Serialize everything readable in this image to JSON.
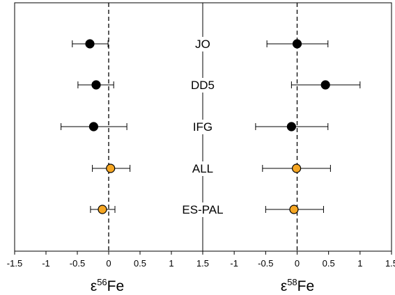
{
  "chart_data": [
    {
      "type": "scatter",
      "xlabel": "ε56Fe",
      "xlabel_prefix": "ε",
      "xlabel_sup": "56",
      "xlabel_suffix": "Fe",
      "xlim": [
        -1.5,
        1.5
      ],
      "xticks": [
        "-1.5",
        "-1",
        "-0.5",
        "0",
        "0.5",
        "1",
        "1.5"
      ],
      "reference_line_x": 0,
      "points": [
        {
          "category": "JO",
          "x": -0.3,
          "err_low": -0.58,
          "err_high": -0.01,
          "color": "#000000"
        },
        {
          "category": "DD5",
          "x": -0.2,
          "err_low": -0.49,
          "err_high": 0.08,
          "color": "#000000"
        },
        {
          "category": "IFG",
          "x": -0.24,
          "err_low": -0.76,
          "err_high": 0.29,
          "color": "#000000"
        },
        {
          "category": "ALL",
          "x": 0.03,
          "err_low": -0.26,
          "err_high": 0.34,
          "color": "#f5a623"
        },
        {
          "category": "ES-PAL",
          "x": -0.1,
          "err_low": -0.29,
          "err_high": 0.1,
          "color": "#f5a623"
        }
      ]
    },
    {
      "type": "scatter",
      "xlabel": "ε58Fe",
      "xlabel_prefix": "ε",
      "xlabel_sup": "58",
      "xlabel_suffix": "Fe",
      "xlim": [
        -1.5,
        1.5
      ],
      "xticks": [
        "-1",
        "-0.5",
        "0",
        "0.5",
        "1",
        "1.5"
      ],
      "reference_line_x": 0,
      "points": [
        {
          "category": "JO",
          "x": 0.0,
          "err_low": -0.48,
          "err_high": 0.49,
          "color": "#000000"
        },
        {
          "category": "DD5",
          "x": 0.45,
          "err_low": -0.09,
          "err_high": 1.0,
          "color": "#000000"
        },
        {
          "category": "IFG",
          "x": -0.09,
          "err_low": -0.66,
          "err_high": 0.49,
          "color": "#000000"
        },
        {
          "category": "ALL",
          "x": -0.01,
          "err_low": -0.55,
          "err_high": 0.53,
          "color": "#f5a623"
        },
        {
          "category": "ES-PAL",
          "x": -0.05,
          "err_low": -0.5,
          "err_high": 0.42,
          "color": "#f5a623"
        }
      ]
    }
  ],
  "categories": [
    "JO",
    "DD5",
    "IFG",
    "ALL",
    "ES-PAL"
  ]
}
